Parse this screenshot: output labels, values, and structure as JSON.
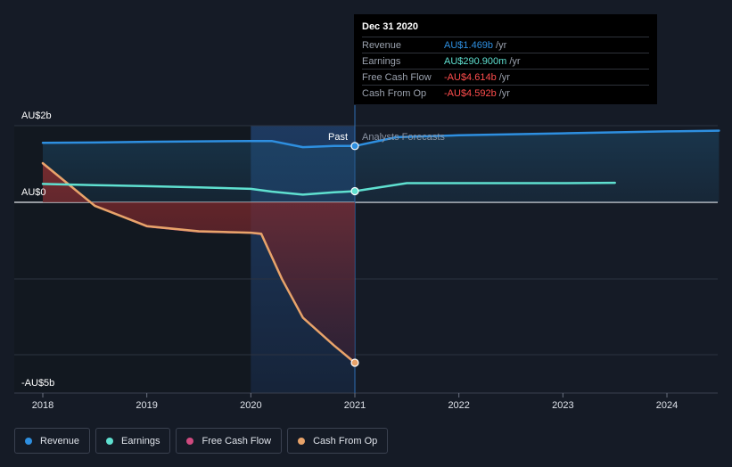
{
  "chart_data": {
    "type": "line",
    "x_ticks": [
      "2018",
      "2019",
      "2020",
      "2021",
      "2022",
      "2023",
      "2024"
    ],
    "y_labels": {
      "top": "AU$2b",
      "zero": "AU$0",
      "bottom": "-AU$5b"
    },
    "ylim": [
      -5,
      2
    ],
    "divider": {
      "x": 2021.0,
      "past_label": "Past",
      "forecast_label": "Analysts Forecasts"
    },
    "series": [
      {
        "name": "Revenue",
        "key": "revenue",
        "color": "#2e8fe0",
        "points": [
          [
            2018.0,
            1.55
          ],
          [
            2018.5,
            1.56
          ],
          [
            2019.0,
            1.58
          ],
          [
            2019.5,
            1.59
          ],
          [
            2020.0,
            1.6
          ],
          [
            2020.2,
            1.6
          ],
          [
            2020.5,
            1.44
          ],
          [
            2020.8,
            1.47
          ],
          [
            2021.0,
            1.469
          ],
          [
            2021.4,
            1.7
          ],
          [
            2022.0,
            1.75
          ],
          [
            2023.0,
            1.8
          ],
          [
            2024.0,
            1.85
          ],
          [
            2024.5,
            1.87
          ]
        ]
      },
      {
        "name": "Earnings",
        "key": "earnings",
        "color": "#5fe0d0",
        "points": [
          [
            2018.0,
            0.48
          ],
          [
            2018.5,
            0.45
          ],
          [
            2019.0,
            0.42
          ],
          [
            2019.5,
            0.39
          ],
          [
            2020.0,
            0.35
          ],
          [
            2020.2,
            0.28
          ],
          [
            2020.5,
            0.2
          ],
          [
            2020.8,
            0.26
          ],
          [
            2021.0,
            0.291
          ],
          [
            2021.5,
            0.5
          ],
          [
            2022.0,
            0.5
          ],
          [
            2023.0,
            0.5
          ],
          [
            2023.5,
            0.51
          ]
        ]
      },
      {
        "name": "Free Cash Flow",
        "key": "fcf",
        "color": "#cf4a7f",
        "points": [
          [
            2018.0,
            1.0
          ],
          [
            2018.5,
            -0.1
          ],
          [
            2019.0,
            -0.7
          ],
          [
            2019.5,
            -0.85
          ],
          [
            2020.0,
            -0.88
          ],
          [
            2020.1,
            -0.92
          ],
          [
            2020.3,
            -2.2
          ],
          [
            2020.5,
            -3.3
          ],
          [
            2020.8,
            -4.1
          ],
          [
            2021.0,
            -4.614
          ]
        ]
      },
      {
        "name": "Cash From Op",
        "key": "cfo",
        "color": "#e8a36a",
        "points": [
          [
            2018.0,
            1.02
          ],
          [
            2018.5,
            -0.1
          ],
          [
            2019.0,
            -0.68
          ],
          [
            2019.5,
            -0.83
          ],
          [
            2020.0,
            -0.87
          ],
          [
            2020.1,
            -0.9
          ],
          [
            2020.3,
            -2.2
          ],
          [
            2020.5,
            -3.3
          ],
          [
            2020.8,
            -4.1
          ],
          [
            2021.0,
            -4.592
          ]
        ]
      }
    ]
  },
  "tooltip": {
    "date": "Dec 31 2020",
    "rows": [
      {
        "label": "Revenue",
        "value": "AU$1.469b",
        "unit": "/yr",
        "color": "#2e8fe0"
      },
      {
        "label": "Earnings",
        "value": "AU$290.900m",
        "unit": "/yr",
        "color": "#5fe0d0"
      },
      {
        "label": "Free Cash Flow",
        "value": "-AU$4.614b",
        "unit": "/yr",
        "color": "#ff4d4d"
      },
      {
        "label": "Cash From Op",
        "value": "-AU$4.592b",
        "unit": "/yr",
        "color": "#ff4d4d"
      }
    ]
  },
  "legend": [
    {
      "label": "Revenue",
      "color": "#2e8fe0"
    },
    {
      "label": "Earnings",
      "color": "#5fe0d0"
    },
    {
      "label": "Free Cash Flow",
      "color": "#cf4a7f"
    },
    {
      "label": "Cash From Op",
      "color": "#e8a36a"
    }
  ]
}
